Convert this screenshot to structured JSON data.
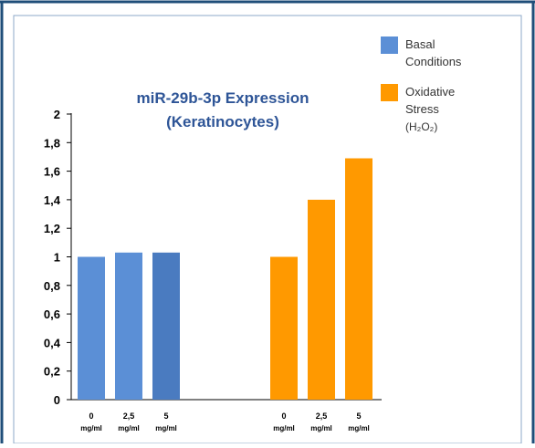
{
  "chart_data": {
    "type": "bar",
    "title_line1": "miR-29b-3p Expression",
    "title_line2": "(Keratinocytes)",
    "xlabel": "",
    "ylabel": "",
    "ylim": [
      0,
      2
    ],
    "yticks": [
      "0",
      "0,2",
      "0,4",
      "0,6",
      "0,8",
      "1",
      "1,2",
      "1,4",
      "1,6",
      "1,8",
      "2"
    ],
    "grid": false,
    "legend_position": "top-right",
    "categories": [
      {
        "value": "0",
        "unit": "mg/ml"
      },
      {
        "value": "2,5",
        "unit": "mg/ml"
      },
      {
        "value": "5",
        "unit": "mg/ml"
      }
    ],
    "series": [
      {
        "name": "Basal Conditions",
        "legend_lines": [
          "Basal",
          "Conditions"
        ],
        "color": "#5B8FD6",
        "values": [
          1.0,
          1.03,
          1.03
        ]
      },
      {
        "name": "Oxidative Stress (H₂O₂)",
        "legend_lines": [
          "Oxidative",
          "Stress",
          "(H₂O₂)"
        ],
        "color": "#FF9900",
        "values": [
          1.0,
          1.4,
          1.69
        ]
      }
    ],
    "colors": {
      "title": "#2E5597",
      "frame": "#1F4E79",
      "axis": "#000000"
    }
  }
}
